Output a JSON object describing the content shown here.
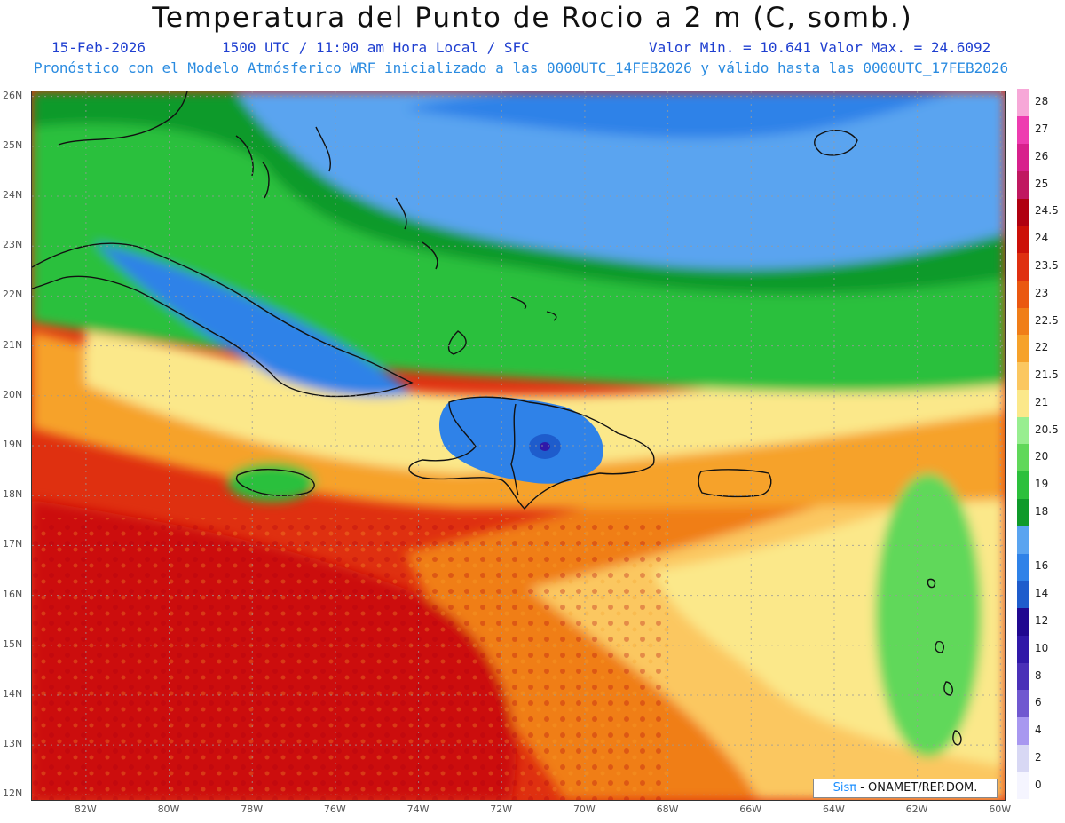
{
  "header": {
    "title": "Temperatura del Punto de Rocio a 2 m (C, somb.)",
    "date": "15-Feb-2026",
    "time": "1500 UTC / 11:00 am Hora Local / SFC",
    "minmax": "Valor Min. = 10.641  Valor Max. = 24.6092",
    "forecast": "Pronóstico con el Modelo Atmósferico WRF inicializado a las 0000UTC_14FEB2026 y válido hasta las  0000UTC_17FEB2026"
  },
  "credit": {
    "brand": "Sisπ",
    "text": " - ONAMET/REP.DOM."
  },
  "map": {
    "lon_range": [
      -83.3,
      -59.9
    ],
    "lat_range": [
      11.9,
      26.1
    ],
    "lon_ticks": [
      {
        "value": -82,
        "label": "82W"
      },
      {
        "value": -80,
        "label": "80W"
      },
      {
        "value": -78,
        "label": "78W"
      },
      {
        "value": -76,
        "label": "76W"
      },
      {
        "value": -74,
        "label": "74W"
      },
      {
        "value": -72,
        "label": "72W"
      },
      {
        "value": -70,
        "label": "70W"
      },
      {
        "value": -68,
        "label": "68W"
      },
      {
        "value": -66,
        "label": "66W"
      },
      {
        "value": -64,
        "label": "64W"
      },
      {
        "value": -62,
        "label": "62W"
      },
      {
        "value": -60,
        "label": "60W"
      }
    ],
    "lat_ticks": [
      {
        "value": 26,
        "label": "26N"
      },
      {
        "value": 25,
        "label": "25N"
      },
      {
        "value": 24,
        "label": "24N"
      },
      {
        "value": 23,
        "label": "23N"
      },
      {
        "value": 22,
        "label": "22N"
      },
      {
        "value": 21,
        "label": "21N"
      },
      {
        "value": 20,
        "label": "20N"
      },
      {
        "value": 19,
        "label": "19N"
      },
      {
        "value": 18,
        "label": "18N"
      },
      {
        "value": 17,
        "label": "17N"
      },
      {
        "value": 16,
        "label": "16N"
      },
      {
        "value": 15,
        "label": "15N"
      },
      {
        "value": 14,
        "label": "14N"
      },
      {
        "value": 13,
        "label": "13N"
      },
      {
        "value": 12,
        "label": "12N"
      }
    ]
  },
  "legend": [
    {
      "label": "0",
      "color": "#f5f5ff"
    },
    {
      "label": "2",
      "color": "#d8d8f4"
    },
    {
      "label": "4",
      "color": "#a898f0"
    },
    {
      "label": "6",
      "color": "#7058d0"
    },
    {
      "label": "8",
      "color": "#4a30b8"
    },
    {
      "label": "10",
      "color": "#3018a8"
    },
    {
      "label": "12",
      "color": "#200890"
    },
    {
      "label": "14",
      "color": "#1e5ccc"
    },
    {
      "label": "16",
      "color": "#2f82e8"
    },
    {
      "label": "",
      "color": "#5aa4f0"
    },
    {
      "label": "18",
      "color": "#0f9a2a"
    },
    {
      "label": "19",
      "color": "#2cc03c"
    },
    {
      "label": "20",
      "color": "#60d85a"
    },
    {
      "label": "20.5",
      "color": "#98ee90"
    },
    {
      "label": "21",
      "color": "#fbe88a"
    },
    {
      "label": "21.5",
      "color": "#fbc760"
    },
    {
      "label": "22",
      "color": "#f6a22a"
    },
    {
      "label": "22.5",
      "color": "#f07e18"
    },
    {
      "label": "23",
      "color": "#ea5810"
    },
    {
      "label": "23.5",
      "color": "#df3010"
    },
    {
      "label": "24",
      "color": "#cc1008"
    },
    {
      "label": "24.5",
      "color": "#b00010"
    },
    {
      "label": "25",
      "color": "#c01860"
    },
    {
      "label": "26",
      "color": "#d8208c"
    },
    {
      "label": "27",
      "color": "#ee3cb0"
    },
    {
      "label": "28",
      "color": "#f7a8d8"
    }
  ]
}
